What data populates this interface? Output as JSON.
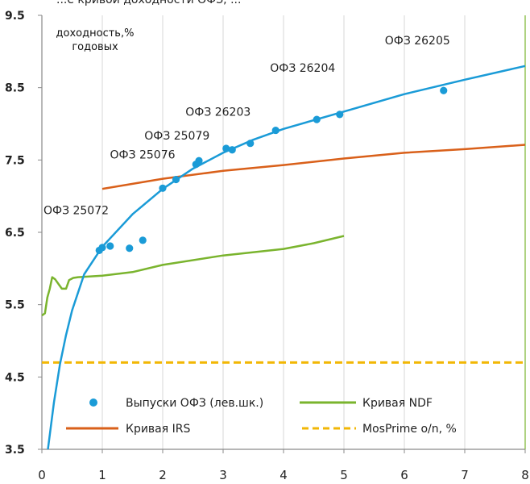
{
  "header_text": "...е кривой доходности ОФЗ, ...",
  "chart_data": {
    "type": "scatter",
    "ylabel_lines": [
      "доходность,%",
      "годовых"
    ],
    "xlim": [
      0,
      8
    ],
    "ylim": [
      3.5,
      9.5
    ],
    "x_ticks": [
      "0",
      "1",
      "2",
      "3",
      "4",
      "5",
      "6",
      "7",
      "8"
    ],
    "y_ticks": [
      "3.5",
      "4.5",
      "5.5",
      "6.5",
      "7.5",
      "8.5",
      "9.5"
    ],
    "grid": "vertical",
    "colors": {
      "ofz": "#1a9bd7",
      "ofz_curve": "#1a9bd7",
      "irs": "#d9601a",
      "ndf": "#7ab42e",
      "mosprime": "#f2b705"
    },
    "series": [
      {
        "name": "Выпуски ОФЗ (лев.шк.)",
        "kind": "points",
        "points": [
          {
            "x": 0.95,
            "y": 6.25
          },
          {
            "x": 1.0,
            "y": 6.29
          },
          {
            "x": 1.13,
            "y": 6.31
          },
          {
            "x": 1.45,
            "y": 6.28
          },
          {
            "x": 1.67,
            "y": 6.39
          },
          {
            "x": 2.0,
            "y": 7.11
          },
          {
            "x": 2.22,
            "y": 7.23
          },
          {
            "x": 2.55,
            "y": 7.44
          },
          {
            "x": 2.6,
            "y": 7.49
          },
          {
            "x": 3.05,
            "y": 7.66
          },
          {
            "x": 3.15,
            "y": 7.64
          },
          {
            "x": 3.45,
            "y": 7.73
          },
          {
            "x": 3.87,
            "y": 7.91
          },
          {
            "x": 4.55,
            "y": 8.06
          },
          {
            "x": 4.93,
            "y": 8.13
          },
          {
            "x": 6.65,
            "y": 8.46
          }
        ]
      },
      {
        "name": "Кривая NDF",
        "kind": "line",
        "points": [
          {
            "x": 0.0,
            "y": 5.35
          },
          {
            "x": 0.05,
            "y": 5.38
          },
          {
            "x": 0.09,
            "y": 5.6
          },
          {
            "x": 0.13,
            "y": 5.72
          },
          {
            "x": 0.17,
            "y": 5.88
          },
          {
            "x": 0.22,
            "y": 5.85
          },
          {
            "x": 0.28,
            "y": 5.78
          },
          {
            "x": 0.33,
            "y": 5.72
          },
          {
            "x": 0.4,
            "y": 5.72
          },
          {
            "x": 0.45,
            "y": 5.84
          },
          {
            "x": 0.52,
            "y": 5.87
          },
          {
            "x": 0.6,
            "y": 5.88
          },
          {
            "x": 1.0,
            "y": 5.9
          },
          {
            "x": 1.5,
            "y": 5.95
          },
          {
            "x": 2.0,
            "y": 6.05
          },
          {
            "x": 3.0,
            "y": 6.18
          },
          {
            "x": 4.0,
            "y": 6.27
          },
          {
            "x": 4.5,
            "y": 6.35
          },
          {
            "x": 5.0,
            "y": 6.45
          }
        ]
      },
      {
        "name": "Кривая IRS",
        "kind": "line",
        "points": [
          {
            "x": 1.0,
            "y": 7.1
          },
          {
            "x": 2.0,
            "y": 7.24
          },
          {
            "x": 3.0,
            "y": 7.35
          },
          {
            "x": 4.0,
            "y": 7.43
          },
          {
            "x": 5.0,
            "y": 7.52
          },
          {
            "x": 6.0,
            "y": 7.6
          },
          {
            "x": 7.0,
            "y": 7.65
          },
          {
            "x": 8.0,
            "y": 7.71
          }
        ]
      },
      {
        "name": "MosPrime o/n, %",
        "kind": "hline",
        "y": 4.7
      }
    ],
    "fitted_curve": {
      "points": [
        {
          "x": 0.1,
          "y": 3.5
        },
        {
          "x": 0.2,
          "y": 4.15
        },
        {
          "x": 0.3,
          "y": 4.68
        },
        {
          "x": 0.4,
          "y": 5.08
        },
        {
          "x": 0.5,
          "y": 5.42
        },
        {
          "x": 0.7,
          "y": 5.92
        },
        {
          "x": 1.0,
          "y": 6.3
        },
        {
          "x": 1.5,
          "y": 6.75
        },
        {
          "x": 2.0,
          "y": 7.1
        },
        {
          "x": 2.5,
          "y": 7.38
        },
        {
          "x": 3.0,
          "y": 7.6
        },
        {
          "x": 3.5,
          "y": 7.78
        },
        {
          "x": 4.0,
          "y": 7.93
        },
        {
          "x": 5.0,
          "y": 8.17
        },
        {
          "x": 6.0,
          "y": 8.41
        },
        {
          "x": 7.0,
          "y": 8.61
        },
        {
          "x": 8.0,
          "y": 8.8
        }
      ]
    },
    "annotations": [
      {
        "text": "ОФЗ 25072",
        "x": 0.0,
        "y": 6.75
      },
      {
        "text": "ОФЗ 25076",
        "x": 1.1,
        "y": 7.52
      },
      {
        "text": "ОФЗ 25079",
        "x": 1.67,
        "y": 7.78
      },
      {
        "text": "ОФЗ 26203",
        "x": 2.35,
        "y": 8.11
      },
      {
        "text": "ОФЗ 26204",
        "x": 3.75,
        "y": 8.72
      },
      {
        "text": "ОФЗ 26205",
        "x": 5.65,
        "y": 9.1
      }
    ],
    "legend": {
      "placement": "bottom",
      "entries": [
        {
          "label": "Выпуски ОФЗ (лев.шк.)",
          "marker": "dot",
          "color": "#1a9bd7"
        },
        {
          "label": "Кривая NDF",
          "marker": "line",
          "color": "#7ab42e"
        },
        {
          "label": "Кривая IRS",
          "marker": "line",
          "color": "#d9601a"
        },
        {
          "label": "MosPrime o/n, %",
          "marker": "dashed",
          "color": "#f2b705"
        }
      ]
    }
  }
}
